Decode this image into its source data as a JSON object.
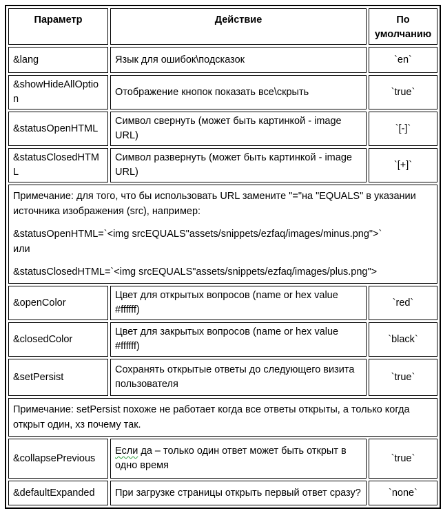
{
  "colors": {
    "border": "#000000",
    "text": "#000000",
    "background": "#ffffff",
    "spellcheck_squiggle": "#2e9e3e"
  },
  "table": {
    "headers": {
      "param": "Параметр",
      "action": "Действие",
      "default": "По умолчанию"
    },
    "rows": [
      {
        "param": "&lang",
        "action": "Язык для ошибок\\подсказок",
        "default": "`en`"
      },
      {
        "param": "&showHideAllOption",
        "action": "Отображение кнопок показать все\\скрыть",
        "default": "`true`"
      },
      {
        "param": "&statusOpenHTML",
        "action": "Символ свернуть (может быть картинкой - image URL)",
        "default": "`[-]`"
      },
      {
        "param": "&statusClosedHTML",
        "action": "Символ развернуть (может быть картинкой - image URL)",
        "default": "`[+]`"
      },
      {
        "param": "&openColor",
        "action": "Цвет для открытых вопросов (name or hex value #ffffff)",
        "default": "`red`"
      },
      {
        "param": "&closedColor",
        "action": "Цвет для закрытых вопросов (name or hex value #ffffff)",
        "default": "`black`"
      },
      {
        "param": "&setPersist",
        "action": "Сохранять открытые ответы до следующего визита пользователя",
        "default": "`true`"
      },
      {
        "param": "&collapsePrevious",
        "action_flagged": "Если",
        "action_rest": " да – только один ответ может быть открыт в одно время",
        "default": "`true`"
      },
      {
        "param": "&defaultExpanded",
        "action": "При загрузке страницы открыть первый ответ сразу?",
        "default": "`none`"
      }
    ],
    "notes": {
      "url_note": {
        "p1": "Примечание: для того, что бы использовать URL замените \"=\"на \"EQUALS\" в указании источника изображения (src), например:",
        "p2": "&statusOpenHTML=`<img srcEQUALS\"assets/snippets/ezfaq/images/minus.png\">`",
        "p3": "или",
        "p4": "&statusClosedHTML=`<img srcEQUALS\"assets/snippets/ezfaq/images/plus.png\">"
      },
      "persist_note": {
        "p1": "Примечание: setPersist похоже не работает когда все ответы открыты, а только когда открыт один, хз почему так."
      }
    }
  }
}
